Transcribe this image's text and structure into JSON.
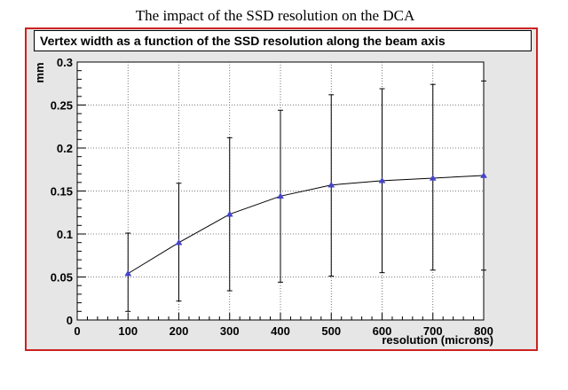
{
  "page_title": "The impact of the SSD resolution on the DCA",
  "chart_data": {
    "type": "line",
    "title": "Vertex width as a function of the SSD resolution along the beam axis",
    "xlabel": "resolution (microns)",
    "ylabel": "mm",
    "xlim": [
      0,
      800
    ],
    "ylim": [
      0,
      0.3
    ],
    "x_ticks": [
      0,
      100,
      200,
      300,
      400,
      500,
      600,
      700,
      800
    ],
    "y_ticks": [
      0,
      0.05,
      0.1,
      0.15,
      0.2,
      0.25,
      0.3
    ],
    "grid": true,
    "series": [
      {
        "x": [
          100,
          200,
          300,
          400,
          500,
          600,
          700,
          800
        ],
        "y": [
          0.054,
          0.09,
          0.123,
          0.144,
          0.157,
          0.162,
          0.165,
          0.168
        ],
        "error_low": [
          0.01,
          0.022,
          0.034,
          0.044,
          0.051,
          0.055,
          0.058,
          0.058
        ],
        "error_high": [
          0.101,
          0.159,
          0.212,
          0.244,
          0.262,
          0.269,
          0.274,
          0.278
        ]
      }
    ],
    "colors": {
      "frame": "#cc2222",
      "marker": "#4444cc",
      "line": "#000000",
      "plot_bg": "#ffffff",
      "canvas_bg": "#e6e6e6"
    }
  }
}
